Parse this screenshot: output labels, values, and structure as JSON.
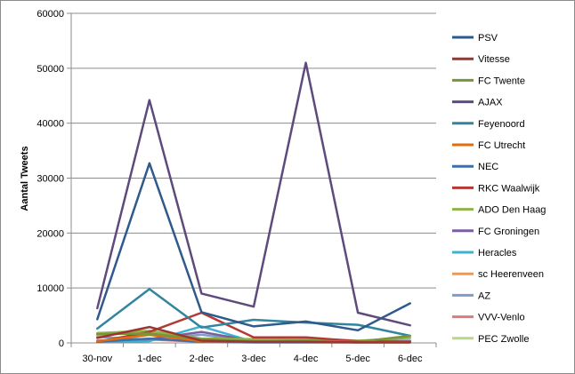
{
  "chart_data": {
    "type": "line",
    "title": "",
    "xlabel": "",
    "ylabel": "Aantal Tweets",
    "ylim": [
      0,
      60000
    ],
    "yticks": [
      0,
      10000,
      20000,
      30000,
      40000,
      50000,
      60000
    ],
    "ytick_labels": [
      "0",
      "10000",
      "20000",
      "30000",
      "40000",
      "50000",
      "60000"
    ],
    "categories": [
      "30-nov",
      "1-dec",
      "2-dec",
      "3-dec",
      "4-dec",
      "5-dec",
      "6-dec"
    ],
    "grid": "horizontal",
    "legend_position": "right",
    "series": [
      {
        "name": "PSV",
        "color": "#2e5a8c",
        "values": [
          4300,
          32700,
          5600,
          3000,
          3900,
          2300,
          7200
        ]
      },
      {
        "name": "Vitesse",
        "color": "#9c3431",
        "values": [
          900,
          2900,
          400,
          200,
          200,
          100,
          100
        ]
      },
      {
        "name": "FC Twente",
        "color": "#77963b",
        "values": [
          1600,
          1700,
          700,
          300,
          400,
          200,
          1300
        ]
      },
      {
        "name": "AJAX",
        "color": "#5e4a7d",
        "values": [
          6300,
          44200,
          9000,
          6600,
          51000,
          5500,
          3200
        ]
      },
      {
        "name": "Feyenoord",
        "color": "#31859c",
        "values": [
          2600,
          9800,
          2800,
          4200,
          3700,
          3300,
          1300
        ]
      },
      {
        "name": "FC Utrecht",
        "color": "#e46c0a",
        "values": [
          300,
          1500,
          300,
          200,
          200,
          100,
          200
        ]
      },
      {
        "name": "NEC",
        "color": "#3e6fa8",
        "values": [
          200,
          800,
          200,
          100,
          100,
          100,
          100
        ]
      },
      {
        "name": "RKC Waalwijk",
        "color": "#b33a34",
        "values": [
          200,
          2000,
          5500,
          1000,
          1000,
          300,
          300
        ]
      },
      {
        "name": "ADO Den Haag",
        "color": "#8fb348",
        "values": [
          1800,
          2200,
          800,
          700,
          800,
          400,
          900
        ]
      },
      {
        "name": "FC Groningen",
        "color": "#7b5ea0",
        "values": [
          400,
          700,
          2000,
          300,
          300,
          200,
          200
        ]
      },
      {
        "name": "Heracles",
        "color": "#3fb2d2",
        "values": [
          200,
          300,
          3000,
          200,
          200,
          100,
          100
        ]
      },
      {
        "name": "sc Heerenveen",
        "color": "#f79646",
        "values": [
          1400,
          2000,
          200,
          100,
          100,
          100,
          100
        ]
      },
      {
        "name": "AZ",
        "color": "#7f9dc8",
        "values": [
          1100,
          600,
          1500,
          200,
          200,
          300,
          400
        ]
      },
      {
        "name": "VVV-Venlo",
        "color": "#e07b78",
        "values": [
          200,
          600,
          200,
          100,
          100,
          100,
          100
        ]
      },
      {
        "name": "PEC Zwolle",
        "color": "#b8d68c",
        "values": [
          300,
          1400,
          300,
          200,
          200,
          100,
          100
        ]
      }
    ]
  }
}
